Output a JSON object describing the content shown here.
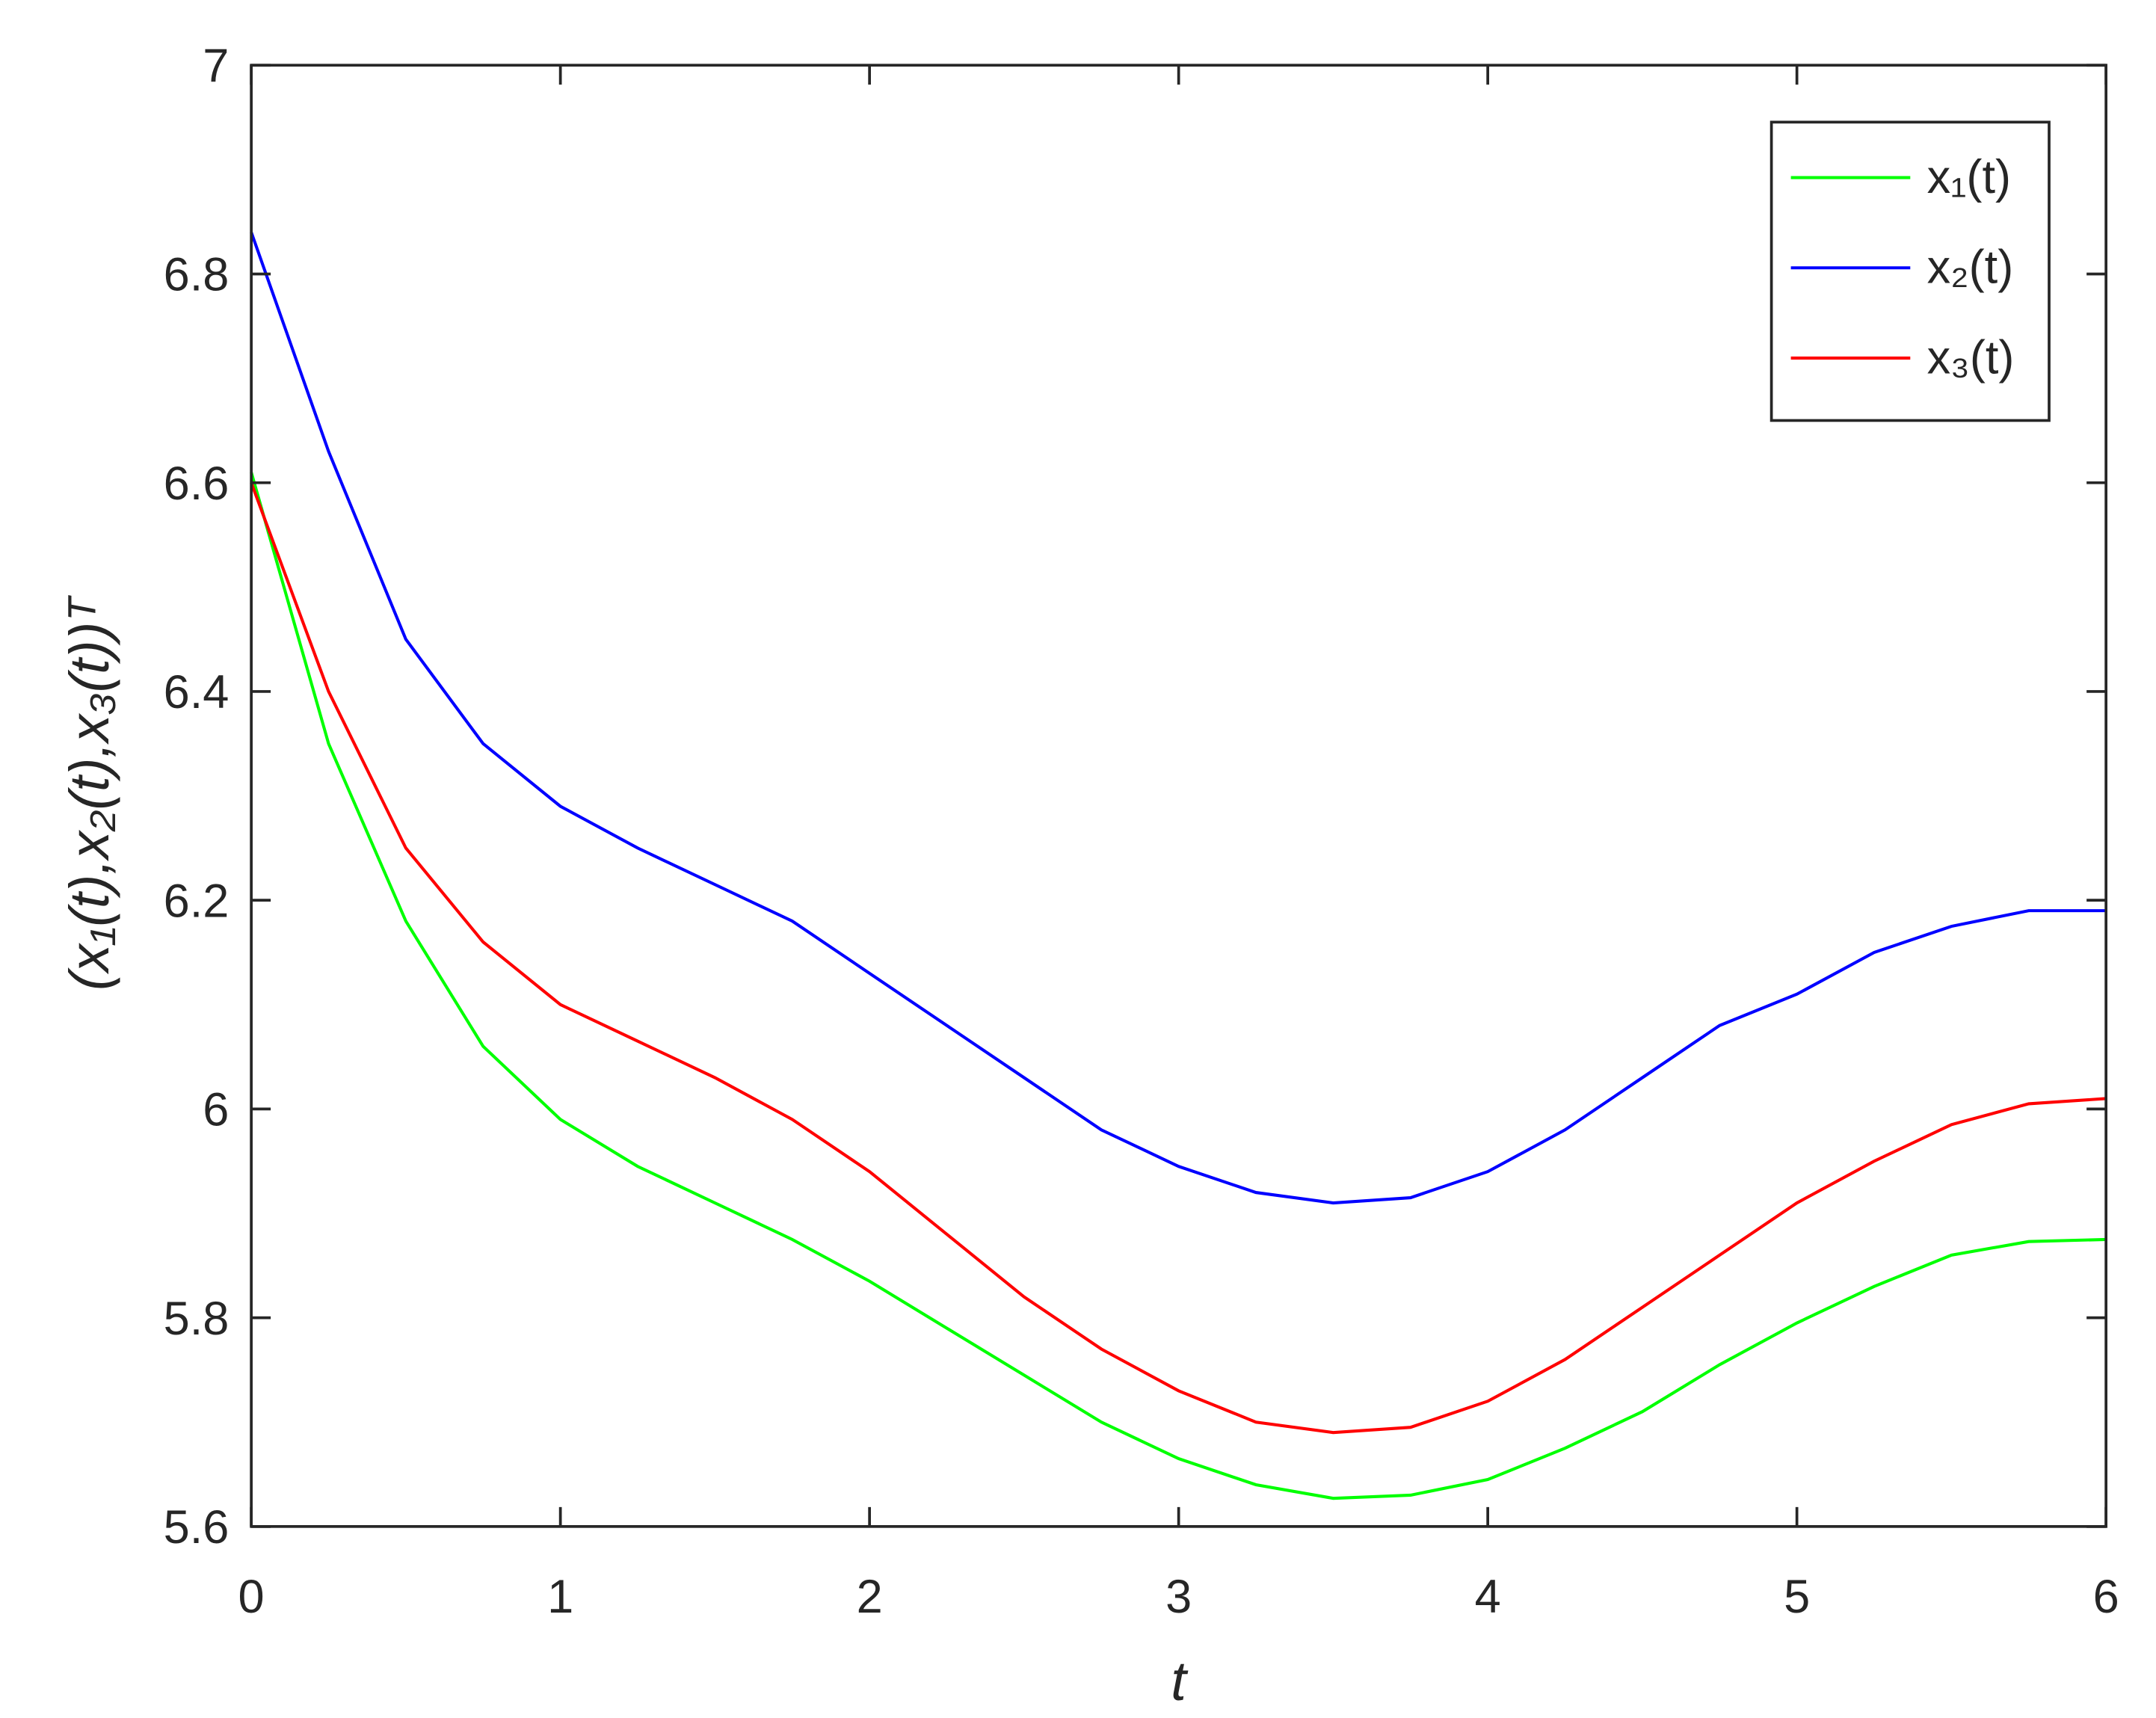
{
  "chart_data": {
    "type": "line",
    "x_label": "t",
    "y_label": "(x₁(t),x₂(t),x₃(t))ᵀ",
    "x": [
      0,
      0.25,
      0.5,
      0.75,
      1,
      1.25,
      1.5,
      1.75,
      2,
      2.25,
      2.5,
      2.75,
      3,
      3.25,
      3.5,
      3.75,
      4,
      4.25,
      4.5,
      4.75,
      5,
      5.25,
      5.5,
      5.75,
      6
    ],
    "series": [
      {
        "name": "x₁(t)",
        "color": "#00ff00",
        "values": [
          6.61,
          6.35,
          6.18,
          6.06,
          5.99,
          5.945,
          5.91,
          5.875,
          5.835,
          5.79,
          5.745,
          5.7,
          5.665,
          5.64,
          5.627,
          5.63,
          5.645,
          5.675,
          5.71,
          5.755,
          5.795,
          5.83,
          5.86,
          5.873,
          5.875
        ]
      },
      {
        "name": "x₂(t)",
        "color": "#0000ff",
        "values": [
          6.84,
          6.63,
          6.45,
          6.35,
          6.29,
          6.25,
          6.215,
          6.18,
          6.13,
          6.08,
          6.03,
          5.98,
          5.945,
          5.92,
          5.91,
          5.915,
          5.94,
          5.98,
          6.03,
          6.08,
          6.11,
          6.15,
          6.175,
          6.19,
          6.19
        ]
      },
      {
        "name": "x₃(t)",
        "color": "#ff0000",
        "values": [
          6.6,
          6.4,
          6.25,
          6.16,
          6.1,
          6.065,
          6.03,
          5.99,
          5.94,
          5.88,
          5.82,
          5.77,
          5.73,
          5.7,
          5.69,
          5.695,
          5.72,
          5.76,
          5.81,
          5.86,
          5.91,
          5.95,
          5.985,
          6.005,
          6.01
        ]
      }
    ],
    "xlim": [
      0,
      6
    ],
    "xticks": [
      0,
      1,
      2,
      3,
      4,
      5,
      6
    ],
    "ylim": [
      5.6,
      7
    ],
    "yticks": [
      5.6,
      5.8,
      6,
      6.2,
      6.4,
      6.6,
      6.8,
      7
    ],
    "legend": "upper right",
    "grid": false
  }
}
